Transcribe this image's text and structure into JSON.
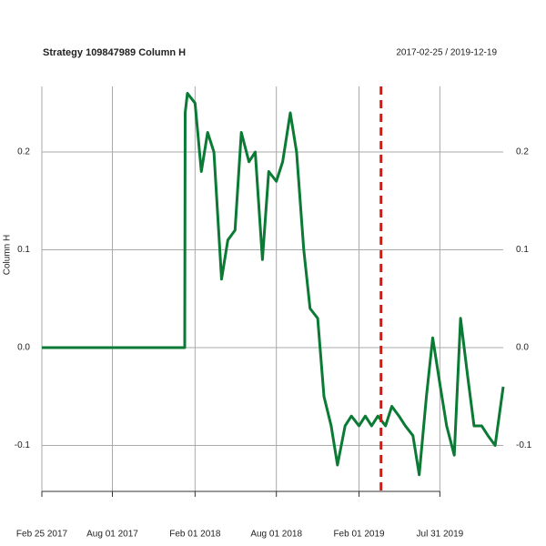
{
  "chart_data": {
    "type": "line",
    "title": "Strategy 109847989 Column H",
    "subtitle": "2017-02-25 / 2019-12-19",
    "y_label": "Column H",
    "x": [
      "2017-02-25",
      "2018-01-09",
      "2018-01-10",
      "2018-01-15",
      "2018-02-01",
      "2018-02-15",
      "2018-03-01",
      "2018-03-15",
      "2018-04-01",
      "2018-04-15",
      "2018-05-01",
      "2018-05-15",
      "2018-06-01",
      "2018-06-15",
      "2018-07-01",
      "2018-07-15",
      "2018-08-01",
      "2018-08-15",
      "2018-09-01",
      "2018-09-15",
      "2018-10-01",
      "2018-10-15",
      "2018-11-01",
      "2018-11-15",
      "2018-12-01",
      "2018-12-15",
      "2019-01-01",
      "2019-01-15",
      "2019-02-01",
      "2019-02-15",
      "2019-03-01",
      "2019-03-15",
      "2019-04-01",
      "2019-04-15",
      "2019-05-01",
      "2019-05-15",
      "2019-06-01",
      "2019-06-15",
      "2019-07-01",
      "2019-07-15",
      "2019-08-01",
      "2019-08-15",
      "2019-09-01",
      "2019-09-15",
      "2019-10-01",
      "2019-10-15",
      "2019-11-01",
      "2019-11-15",
      "2019-12-01",
      "2019-12-19"
    ],
    "values": [
      0,
      0,
      0.24,
      0.26,
      0.25,
      0.18,
      0.22,
      0.2,
      0.07,
      0.11,
      0.12,
      0.22,
      0.19,
      0.2,
      0.09,
      0.18,
      0.17,
      0.19,
      0.24,
      0.2,
      0.1,
      0.04,
      0.03,
      -0.05,
      -0.08,
      -0.12,
      -0.08,
      -0.07,
      -0.08,
      -0.07,
      -0.08,
      -0.07,
      -0.08,
      -0.06,
      -0.07,
      -0.08,
      -0.09,
      -0.13,
      -0.05,
      0.01,
      -0.04,
      -0.08,
      -0.11,
      0.03,
      -0.03,
      -0.08,
      -0.08,
      -0.09,
      -0.1,
      -0.04
    ],
    "color": "#0a7a35",
    "xlim": [
      "2017-02-25",
      "2019-12-19"
    ],
    "xticks": [
      {
        "value": "2017-02-25",
        "label": "Feb 25 2017"
      },
      {
        "value": "2017-08-01",
        "label": "Aug 01 2017"
      },
      {
        "value": "2018-02-01",
        "label": "Feb 01 2018"
      },
      {
        "value": "2018-08-01",
        "label": "Aug 01 2018"
      },
      {
        "value": "2019-02-01",
        "label": "Feb 01 2019"
      },
      {
        "value": "2019-07-31",
        "label": "Jul 31 2019"
      }
    ],
    "ylim": [
      -0.147,
      0.267
    ],
    "yticks": [
      -0.1,
      {
        "value": 0,
        "label": "0.0"
      },
      0.1,
      0.2
    ],
    "grid": true,
    "vline": {
      "x": "2019-03-22",
      "color": "#e3120b"
    }
  }
}
